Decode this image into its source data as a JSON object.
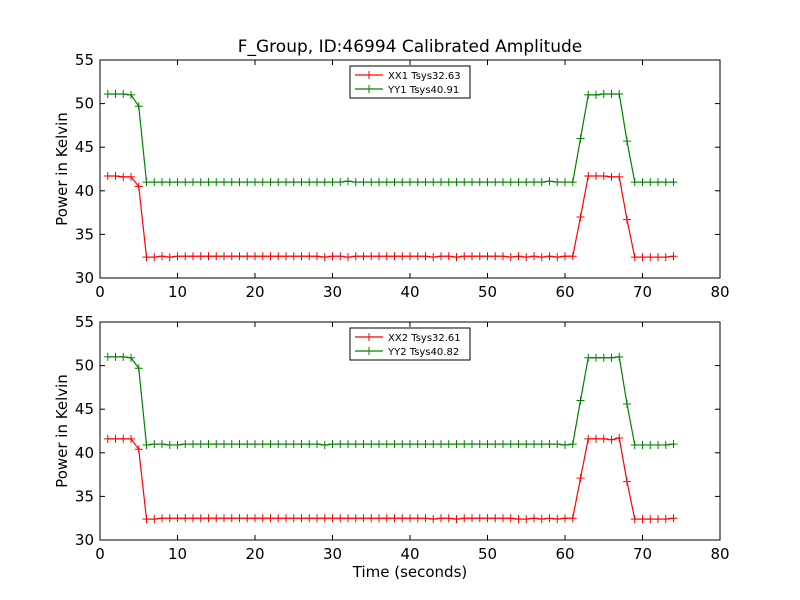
{
  "chart_data": [
    {
      "type": "line",
      "title": "F_Group, ID:46994 Calibrated Amplitude",
      "xlabel": "",
      "ylabel": "Power in Kelvin",
      "xlim": [
        0,
        80
      ],
      "ylim": [
        30,
        55
      ],
      "xticks": [
        0,
        10,
        20,
        30,
        40,
        50,
        60,
        70,
        80
      ],
      "yticks": [
        30,
        35,
        40,
        45,
        50,
        55
      ],
      "grid": false,
      "legend_position": "top-center",
      "x": [
        1,
        2,
        3,
        4,
        5,
        6,
        7,
        8,
        9,
        10,
        11,
        12,
        13,
        14,
        15,
        16,
        17,
        18,
        19,
        20,
        21,
        22,
        23,
        24,
        25,
        26,
        27,
        28,
        29,
        30,
        31,
        32,
        33,
        34,
        35,
        36,
        37,
        38,
        39,
        40,
        41,
        42,
        43,
        44,
        45,
        46,
        47,
        48,
        49,
        50,
        51,
        52,
        53,
        54,
        55,
        56,
        57,
        58,
        59,
        60,
        61,
        62,
        63,
        64,
        65,
        66,
        67,
        68,
        69,
        70,
        71,
        72,
        73,
        74
      ],
      "series": [
        {
          "name": "XX1 Tsys32.63",
          "color": "#ff0000",
          "values": [
            41.7,
            41.7,
            41.6,
            41.6,
            40.5,
            32.4,
            32.4,
            32.5,
            32.4,
            32.5,
            32.5,
            32.5,
            32.5,
            32.5,
            32.5,
            32.5,
            32.5,
            32.5,
            32.5,
            32.5,
            32.5,
            32.5,
            32.5,
            32.5,
            32.5,
            32.5,
            32.5,
            32.5,
            32.4,
            32.5,
            32.5,
            32.4,
            32.5,
            32.5,
            32.5,
            32.5,
            32.5,
            32.5,
            32.5,
            32.5,
            32.5,
            32.5,
            32.4,
            32.5,
            32.5,
            32.4,
            32.5,
            32.5,
            32.5,
            32.5,
            32.5,
            32.5,
            32.4,
            32.5,
            32.4,
            32.5,
            32.4,
            32.5,
            32.4,
            32.5,
            32.5,
            37.0,
            41.7,
            41.7,
            41.7,
            41.6,
            41.6,
            36.7,
            32.4,
            32.4,
            32.4,
            32.4,
            32.4,
            32.5
          ]
        },
        {
          "name": "YY1 Tsys40.91",
          "color": "#008000",
          "values": [
            51.1,
            51.1,
            51.1,
            51.0,
            49.7,
            41.0,
            41.0,
            41.0,
            41.0,
            41.0,
            41.0,
            41.0,
            41.0,
            41.0,
            41.0,
            41.0,
            41.0,
            41.0,
            41.0,
            41.0,
            41.0,
            41.0,
            41.0,
            41.0,
            41.0,
            41.0,
            41.0,
            41.0,
            41.0,
            41.0,
            41.0,
            41.1,
            41.0,
            41.0,
            41.0,
            41.0,
            41.0,
            41.0,
            41.0,
            41.0,
            41.0,
            41.0,
            41.0,
            41.0,
            41.0,
            41.0,
            41.0,
            41.0,
            41.0,
            41.0,
            41.0,
            41.0,
            41.0,
            41.0,
            41.0,
            41.0,
            41.0,
            41.1,
            41.0,
            41.0,
            41.0,
            46.0,
            51.0,
            51.0,
            51.1,
            51.1,
            51.1,
            45.7,
            41.0,
            41.0,
            41.0,
            41.0,
            41.0,
            41.0
          ]
        }
      ]
    },
    {
      "type": "line",
      "title": "",
      "xlabel": "Time (seconds)",
      "ylabel": "Power in Kelvin",
      "xlim": [
        0,
        80
      ],
      "ylim": [
        30,
        55
      ],
      "xticks": [
        0,
        10,
        20,
        30,
        40,
        50,
        60,
        70,
        80
      ],
      "yticks": [
        30,
        35,
        40,
        45,
        50,
        55
      ],
      "grid": false,
      "legend_position": "top-center",
      "x": [
        1,
        2,
        3,
        4,
        5,
        6,
        7,
        8,
        9,
        10,
        11,
        12,
        13,
        14,
        15,
        16,
        17,
        18,
        19,
        20,
        21,
        22,
        23,
        24,
        25,
        26,
        27,
        28,
        29,
        30,
        31,
        32,
        33,
        34,
        35,
        36,
        37,
        38,
        39,
        40,
        41,
        42,
        43,
        44,
        45,
        46,
        47,
        48,
        49,
        50,
        51,
        52,
        53,
        54,
        55,
        56,
        57,
        58,
        59,
        60,
        61,
        62,
        63,
        64,
        65,
        66,
        67,
        68,
        69,
        70,
        71,
        72,
        73,
        74
      ],
      "series": [
        {
          "name": "XX2 Tsys32.61",
          "color": "#ff0000",
          "values": [
            41.6,
            41.6,
            41.6,
            41.6,
            40.4,
            32.4,
            32.4,
            32.5,
            32.5,
            32.5,
            32.5,
            32.5,
            32.5,
            32.5,
            32.5,
            32.5,
            32.5,
            32.5,
            32.5,
            32.5,
            32.5,
            32.5,
            32.5,
            32.5,
            32.5,
            32.5,
            32.5,
            32.5,
            32.5,
            32.5,
            32.5,
            32.5,
            32.5,
            32.5,
            32.5,
            32.5,
            32.5,
            32.5,
            32.5,
            32.5,
            32.5,
            32.5,
            32.4,
            32.5,
            32.5,
            32.4,
            32.5,
            32.5,
            32.5,
            32.5,
            32.5,
            32.5,
            32.5,
            32.4,
            32.4,
            32.5,
            32.4,
            32.5,
            32.4,
            32.5,
            32.5,
            37.1,
            41.6,
            41.6,
            41.6,
            41.5,
            41.7,
            36.7,
            32.4,
            32.4,
            32.4,
            32.4,
            32.4,
            32.5
          ]
        },
        {
          "name": "YY2 Tsys40.82",
          "color": "#008000",
          "values": [
            51.0,
            51.0,
            51.0,
            50.9,
            49.7,
            40.9,
            41.0,
            41.0,
            40.9,
            40.9,
            41.0,
            41.0,
            41.0,
            41.0,
            41.0,
            41.0,
            41.0,
            41.0,
            41.0,
            41.0,
            41.0,
            41.0,
            41.0,
            41.0,
            41.0,
            41.0,
            41.0,
            41.0,
            40.9,
            41.0,
            41.0,
            41.0,
            41.0,
            41.0,
            41.0,
            41.0,
            41.0,
            41.0,
            41.0,
            41.0,
            41.0,
            41.0,
            41.0,
            41.0,
            41.0,
            41.0,
            41.0,
            41.0,
            41.0,
            41.0,
            41.0,
            41.0,
            41.0,
            41.0,
            41.0,
            41.0,
            41.0,
            41.0,
            41.0,
            40.9,
            41.0,
            46.0,
            50.9,
            50.9,
            50.9,
            50.9,
            51.0,
            45.6,
            40.9,
            40.9,
            40.9,
            40.9,
            40.9,
            41.0
          ]
        }
      ]
    }
  ]
}
